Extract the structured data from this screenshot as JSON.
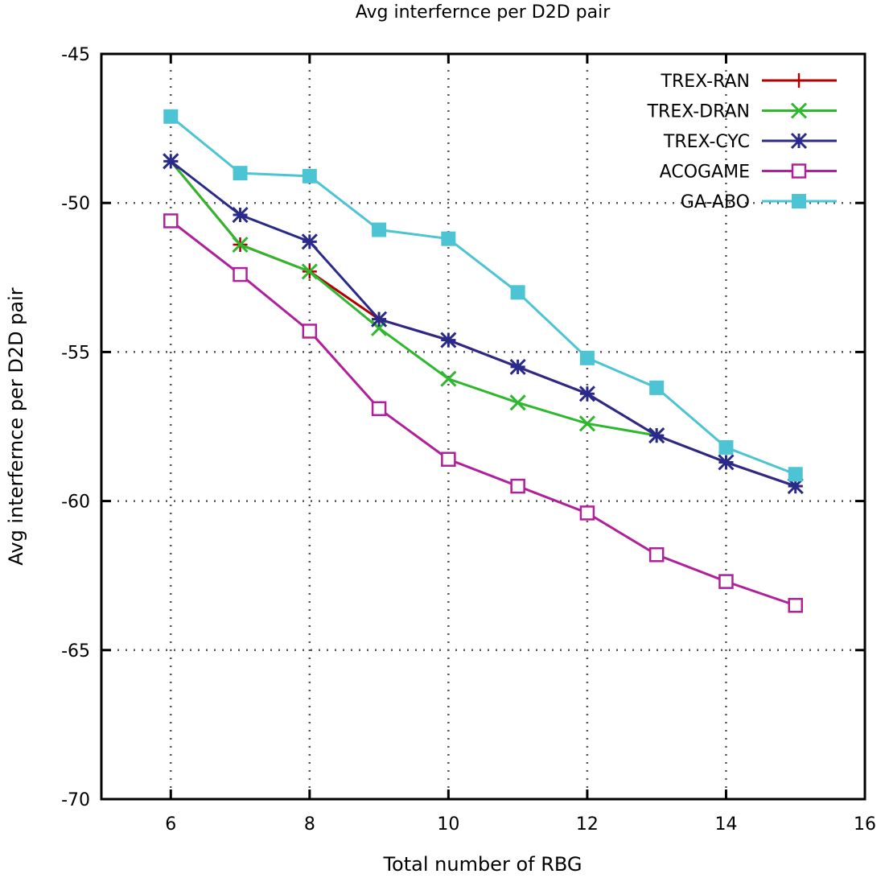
{
  "chart_data": {
    "type": "line",
    "title": "Avg interfernce per D2D pair",
    "xlabel": "Total number of RBG",
    "ylabel": "Avg interfernce per D2D pair",
    "xlim": [
      5,
      16
    ],
    "ylim": [
      -70,
      -45
    ],
    "xticks": [
      6,
      8,
      10,
      12,
      14,
      16
    ],
    "yticks": [
      -45,
      -50,
      -55,
      -60,
      -65,
      -70
    ],
    "grid": true,
    "legend_position": "top-right",
    "series": [
      {
        "name": "TREX-RAN",
        "color": "#b00000",
        "marker": "plus",
        "x": [
          6,
          7,
          8,
          9,
          10,
          11,
          12,
          13,
          14,
          15
        ],
        "values": [
          -48.6,
          -51.4,
          -52.3,
          -53.9,
          -54.6,
          -55.5,
          -56.4,
          -57.8,
          -58.7,
          -59.5
        ]
      },
      {
        "name": "TREX-DRAN",
        "color": "#2eb82e",
        "marker": "x",
        "x": [
          6,
          7,
          8,
          9,
          10,
          11,
          12,
          13
        ],
        "values": [
          -48.6,
          -51.4,
          -52.3,
          -54.2,
          -55.9,
          -56.7,
          -57.4,
          -57.8
        ]
      },
      {
        "name": "TREX-CYC",
        "color": "#2a2a8a",
        "marker": "star",
        "x": [
          6,
          7,
          8,
          9,
          10,
          11,
          12,
          13,
          14,
          15
        ],
        "values": [
          -48.6,
          -50.4,
          -51.3,
          -53.9,
          -54.6,
          -55.5,
          -56.4,
          -57.8,
          -58.7,
          -59.5
        ]
      },
      {
        "name": "ACOGAME",
        "color": "#b0209a",
        "marker": "open-square",
        "x": [
          6,
          7,
          8,
          9,
          10,
          11,
          12,
          13,
          14,
          15
        ],
        "values": [
          -50.6,
          -52.4,
          -54.3,
          -56.9,
          -58.6,
          -59.5,
          -60.4,
          -61.8,
          -62.7,
          -63.5
        ]
      },
      {
        "name": "GA-ABO",
        "color": "#4cc4d4",
        "marker": "filled-square",
        "x": [
          6,
          7,
          8,
          9,
          10,
          11,
          12,
          13,
          14,
          15
        ],
        "values": [
          -47.1,
          -49.0,
          -49.1,
          -50.9,
          -51.2,
          -53.0,
          -55.2,
          -56.2,
          -58.2,
          -59.1
        ]
      }
    ]
  }
}
